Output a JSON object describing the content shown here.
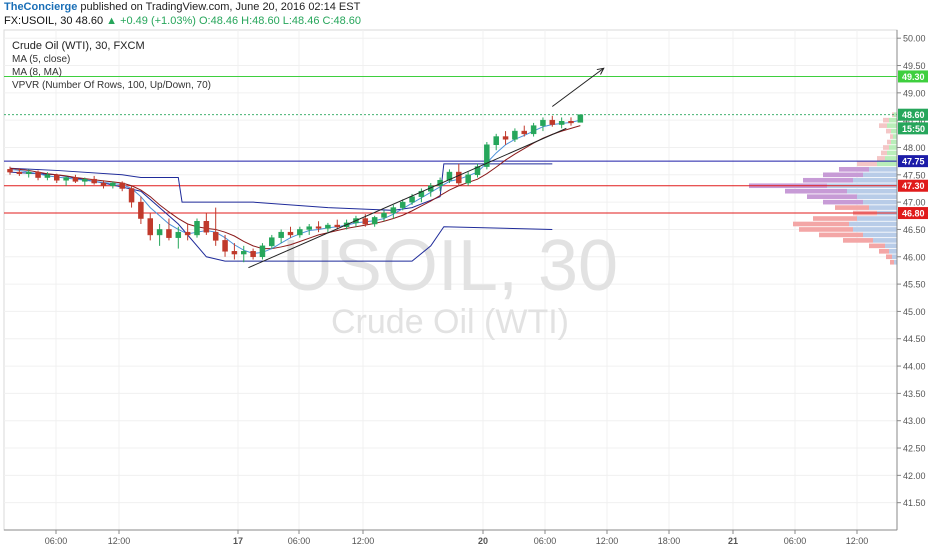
{
  "header": {
    "author": "TheConcierge",
    "published": " published on TradingView.com, June 20, 2016 02:14 EST",
    "symbol": "FX:USOIL, 30",
    "last": "48.60",
    "change": "▲ +0.49 (+1.03%)",
    "ohlc": "O:48.46 H:48.60 L:48.46 C:48.60"
  },
  "legend": {
    "title": "Crude Oil (WTI), 30, FXCM",
    "ma5": "MA (5, close)",
    "ma8": "MA (8, MA)",
    "vpvr": "VPVR (Number Of Rows, 100, Up/Down, 70)"
  },
  "watermark": {
    "symbol": "USOIL, 30",
    "name": "Crude Oil (WTI)"
  },
  "colors": {
    "up": "#26a65b",
    "down": "#c0392b",
    "ma5": "#4a90d9",
    "ma8": "#8b1a1a",
    "channel": "#1f2b9a",
    "green_line": "#3ecf3e",
    "blue_line": "#1c1ca8",
    "red_line": "#e01b1b"
  },
  "chart_data": {
    "type": "candlestick",
    "ylim": [
      41.0,
      50.15
    ],
    "y_ticks": [
      "41.50",
      "42.00",
      "42.50",
      "43.00",
      "43.50",
      "44.00",
      "44.50",
      "45.00",
      "45.50",
      "46.00",
      "46.50",
      "47.00",
      "47.50",
      "48.00",
      "48.50",
      "49.00",
      "49.50",
      "50.00"
    ],
    "x_ticks": [
      "06:00",
      "12:00",
      "17",
      "06:00",
      "12:00",
      "20",
      "06:00",
      "12:00",
      "18:00",
      "21",
      "06:00",
      "12:00"
    ],
    "price_labels": [
      {
        "value": 49.3,
        "text": "49.30",
        "color": "#3ecf3e"
      },
      {
        "value": 48.6,
        "text": "48.60",
        "color": "#26a65b"
      },
      {
        "value": 48.35,
        "text": "15:50",
        "color": "#26a65b"
      },
      {
        "value": 47.75,
        "text": "47.75",
        "color": "#1c1ca8"
      },
      {
        "value": 47.3,
        "text": "47.30",
        "color": "#e01b1b"
      },
      {
        "value": 46.8,
        "text": "46.80",
        "color": "#e01b1b"
      }
    ],
    "horizontal_lines": [
      {
        "value": 49.3,
        "color": "#3ecf3e"
      },
      {
        "value": 47.75,
        "color": "#1c1ca8"
      },
      {
        "value": 47.3,
        "color": "#e01b1b"
      },
      {
        "value": 46.8,
        "color": "#e01b1b"
      }
    ],
    "candles": [
      [
        47.6,
        47.65,
        47.5,
        47.55
      ],
      [
        47.55,
        47.62,
        47.48,
        47.52
      ],
      [
        47.52,
        47.6,
        47.45,
        47.55
      ],
      [
        47.55,
        47.58,
        47.4,
        47.45
      ],
      [
        47.45,
        47.55,
        47.4,
        47.5
      ],
      [
        47.5,
        47.52,
        47.35,
        47.4
      ],
      [
        47.4,
        47.48,
        47.3,
        47.45
      ],
      [
        47.45,
        47.5,
        47.35,
        47.38
      ],
      [
        47.38,
        47.45,
        47.3,
        47.42
      ],
      [
        47.42,
        47.48,
        47.32,
        47.35
      ],
      [
        47.35,
        47.4,
        47.25,
        47.3
      ],
      [
        47.3,
        47.38,
        47.25,
        47.35
      ],
      [
        47.35,
        47.38,
        47.2,
        47.25
      ],
      [
        47.25,
        47.3,
        46.9,
        47.0
      ],
      [
        47.0,
        47.1,
        46.6,
        46.7
      ],
      [
        46.7,
        46.8,
        46.3,
        46.4
      ],
      [
        46.4,
        46.6,
        46.2,
        46.5
      ],
      [
        46.5,
        46.7,
        46.3,
        46.35
      ],
      [
        46.35,
        46.55,
        46.15,
        46.45
      ],
      [
        46.45,
        46.6,
        46.3,
        46.4
      ],
      [
        46.4,
        46.7,
        46.35,
        46.65
      ],
      [
        46.65,
        46.8,
        46.4,
        46.45
      ],
      [
        46.45,
        46.9,
        46.2,
        46.3
      ],
      [
        46.3,
        46.4,
        46.0,
        46.1
      ],
      [
        46.1,
        46.25,
        45.95,
        46.05
      ],
      [
        46.05,
        46.2,
        45.9,
        46.1
      ],
      [
        46.1,
        46.15,
        45.95,
        46.0
      ],
      [
        46.0,
        46.25,
        45.95,
        46.2
      ],
      [
        46.2,
        46.4,
        46.15,
        46.35
      ],
      [
        46.35,
        46.5,
        46.25,
        46.45
      ],
      [
        46.45,
        46.55,
        46.35,
        46.4
      ],
      [
        46.4,
        46.55,
        46.35,
        46.5
      ],
      [
        46.5,
        46.6,
        46.4,
        46.55
      ],
      [
        46.55,
        46.65,
        46.45,
        46.52
      ],
      [
        46.52,
        46.62,
        46.45,
        46.58
      ],
      [
        46.58,
        46.68,
        46.5,
        46.55
      ],
      [
        46.55,
        46.68,
        46.5,
        46.62
      ],
      [
        46.62,
        46.75,
        46.55,
        46.7
      ],
      [
        46.7,
        46.78,
        46.55,
        46.6
      ],
      [
        46.6,
        46.75,
        46.55,
        46.72
      ],
      [
        46.72,
        46.85,
        46.65,
        46.8
      ],
      [
        46.8,
        46.95,
        46.7,
        46.9
      ],
      [
        46.9,
        47.05,
        46.85,
        47.0
      ],
      [
        47.0,
        47.15,
        46.95,
        47.1
      ],
      [
        47.1,
        47.25,
        47.0,
        47.2
      ],
      [
        47.2,
        47.35,
        47.1,
        47.3
      ],
      [
        47.3,
        47.45,
        47.2,
        47.4
      ],
      [
        47.4,
        47.6,
        47.35,
        47.55
      ],
      [
        47.55,
        47.7,
        47.3,
        47.35
      ],
      [
        47.35,
        47.55,
        47.3,
        47.5
      ],
      [
        47.5,
        47.7,
        47.45,
        47.65
      ],
      [
        47.65,
        48.1,
        47.6,
        48.05
      ],
      [
        48.05,
        48.25,
        47.95,
        48.2
      ],
      [
        48.2,
        48.3,
        48.05,
        48.15
      ],
      [
        48.15,
        48.35,
        48.1,
        48.3
      ],
      [
        48.3,
        48.4,
        48.2,
        48.25
      ],
      [
        48.25,
        48.45,
        48.2,
        48.4
      ],
      [
        48.4,
        48.55,
        48.3,
        48.5
      ],
      [
        48.5,
        48.58,
        48.38,
        48.42
      ],
      [
        48.42,
        48.55,
        48.35,
        48.48
      ],
      [
        48.48,
        48.55,
        48.4,
        48.45
      ],
      [
        48.46,
        48.6,
        48.46,
        48.6
      ]
    ],
    "ma5": [
      47.6,
      47.58,
      47.55,
      47.52,
      47.48,
      47.46,
      47.44,
      47.42,
      47.4,
      47.38,
      47.36,
      47.34,
      47.32,
      47.25,
      47.1,
      46.9,
      46.75,
      46.6,
      46.5,
      46.42,
      46.45,
      46.48,
      46.45,
      46.35,
      46.22,
      46.12,
      46.06,
      46.08,
      46.15,
      46.25,
      46.35,
      46.42,
      46.48,
      46.5,
      46.53,
      46.55,
      46.58,
      46.62,
      46.64,
      46.66,
      46.7,
      46.78,
      46.88,
      46.98,
      47.08,
      47.18,
      47.28,
      47.38,
      47.42,
      47.48,
      47.55,
      47.72,
      47.9,
      48.05,
      48.15,
      48.22,
      48.3,
      48.38,
      48.42,
      48.44,
      48.46,
      48.5
    ],
    "ma8": [
      47.62,
      47.6,
      47.58,
      47.55,
      47.52,
      47.5,
      47.48,
      47.45,
      47.43,
      47.41,
      47.39,
      47.37,
      47.35,
      47.3,
      47.22,
      47.1,
      46.95,
      46.82,
      46.7,
      46.6,
      46.55,
      46.52,
      46.5,
      46.45,
      46.38,
      46.28,
      46.2,
      46.15,
      46.15,
      46.18,
      46.22,
      46.28,
      46.34,
      46.4,
      46.44,
      46.48,
      46.52,
      46.55,
      46.58,
      46.61,
      46.65,
      46.7,
      46.76,
      46.84,
      46.93,
      47.02,
      47.12,
      47.22,
      47.3,
      47.36,
      47.42,
      47.52,
      47.64,
      47.77,
      47.88,
      47.98,
      48.08,
      48.17,
      48.24,
      48.3,
      48.35,
      48.4
    ],
    "channel_upper": [
      [
        0,
        47.62
      ],
      [
        5,
        47.58
      ],
      [
        12,
        47.5
      ],
      [
        14,
        47.45
      ],
      [
        18,
        47.45
      ],
      [
        18.4,
        47.0
      ],
      [
        26,
        47.0
      ],
      [
        34,
        46.9
      ],
      [
        41,
        46.85
      ],
      [
        43,
        46.9
      ],
      [
        46,
        47.1
      ],
      [
        46.4,
        47.7
      ],
      [
        58,
        47.7
      ]
    ],
    "channel_lower": [
      [
        0,
        47.55
      ],
      [
        5,
        47.5
      ],
      [
        10,
        47.35
      ],
      [
        14,
        47.2
      ],
      [
        18,
        46.6
      ],
      [
        21,
        46.0
      ],
      [
        23,
        45.92
      ],
      [
        27,
        45.92
      ],
      [
        33,
        45.92
      ],
      [
        40,
        45.92
      ],
      [
        43,
        45.92
      ],
      [
        45,
        46.2
      ],
      [
        46.4,
        46.55
      ],
      [
        58,
        46.5
      ]
    ],
    "trendline": [
      [
        25.5,
        45.8
      ],
      [
        59.5,
        48.35
      ]
    ],
    "arrow": [
      [
        58.0,
        48.75
      ],
      [
        63.5,
        49.45
      ]
    ],
    "volume_profile": [
      {
        "price": 48.6,
        "up": 3,
        "down": 2
      },
      {
        "price": 48.5,
        "up": 8,
        "down": 6
      },
      {
        "price": 48.4,
        "up": 10,
        "down": 8
      },
      {
        "price": 48.3,
        "up": 6,
        "down": 5
      },
      {
        "price": 48.2,
        "up": 4,
        "down": 3
      },
      {
        "price": 48.1,
        "up": 6,
        "down": 4
      },
      {
        "price": 48.0,
        "up": 8,
        "down": 6
      },
      {
        "price": 47.9,
        "up": 10,
        "down": 6
      },
      {
        "price": 47.8,
        "up": 12,
        "down": 8
      },
      {
        "price": 47.7,
        "up": 20,
        "down": 20
      },
      {
        "price": 47.6,
        "up": 28,
        "down": 30
      },
      {
        "price": 47.5,
        "up": 34,
        "down": 40
      },
      {
        "price": 47.4,
        "up": 44,
        "down": 50
      },
      {
        "price": 47.3,
        "up": 70,
        "down": 78
      },
      {
        "price": 47.2,
        "up": 50,
        "down": 62
      },
      {
        "price": 47.1,
        "up": 40,
        "down": 50
      },
      {
        "price": 47.0,
        "up": 34,
        "down": 40
      },
      {
        "price": 46.9,
        "up": 28,
        "down": 34
      },
      {
        "price": 46.8,
        "up": 20,
        "down": 24
      },
      {
        "price": 46.7,
        "up": 40,
        "down": 44
      },
      {
        "price": 46.6,
        "up": 48,
        "down": 56
      },
      {
        "price": 46.5,
        "up": 44,
        "down": 54
      },
      {
        "price": 46.4,
        "up": 34,
        "down": 44
      },
      {
        "price": 46.3,
        "up": 24,
        "down": 30
      },
      {
        "price": 46.2,
        "up": 12,
        "down": 16
      },
      {
        "price": 46.1,
        "up": 8,
        "down": 10
      },
      {
        "price": 46.0,
        "up": 5,
        "down": 6
      },
      {
        "price": 45.9,
        "up": 3,
        "down": 4
      }
    ]
  }
}
